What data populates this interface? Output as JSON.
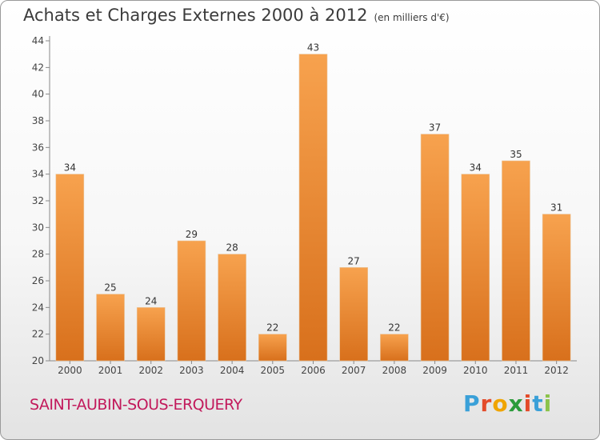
{
  "header": {
    "title": "Achats et Charges Externes 2000 à 2012",
    "unit": "(en milliers d'€)"
  },
  "footer": {
    "commune": "SAINT-AUBIN-SOUS-ERQUERY",
    "logo_letters": [
      "P",
      "r",
      "o",
      "x",
      "i",
      "t",
      "i"
    ],
    "logo_colors": [
      "#3aa0d8",
      "#e34b2a",
      "#f0a400",
      "#2a9b3b",
      "#e34b2a",
      "#3aa0d8",
      "#8bc34a"
    ]
  },
  "colors": {
    "bar_top": "#f7a24e",
    "bar_bottom": "#d8701c",
    "axis": "#888888",
    "grid": "#cfcfcf"
  },
  "chart_data": {
    "type": "bar",
    "categories": [
      "2000",
      "2001",
      "2002",
      "2003",
      "2004",
      "2005",
      "2006",
      "2007",
      "2008",
      "2009",
      "2010",
      "2011",
      "2012"
    ],
    "values": [
      34,
      25,
      24,
      29,
      28,
      22,
      43,
      27,
      22,
      37,
      34,
      35,
      31
    ],
    "data_labels": [
      "34",
      "25",
      "24",
      "29",
      "28",
      "22",
      "43",
      "27",
      "22",
      "37",
      "34",
      "35",
      "31"
    ],
    "yticks": [
      "20",
      "22",
      "24",
      "26",
      "28",
      "30",
      "32",
      "34",
      "36",
      "38",
      "40",
      "42",
      "44"
    ],
    "ylim": [
      20,
      44
    ],
    "grid": false,
    "title": "Achats et Charges Externes 2000 à 2012",
    "xlabel": "",
    "ylabel": ""
  }
}
